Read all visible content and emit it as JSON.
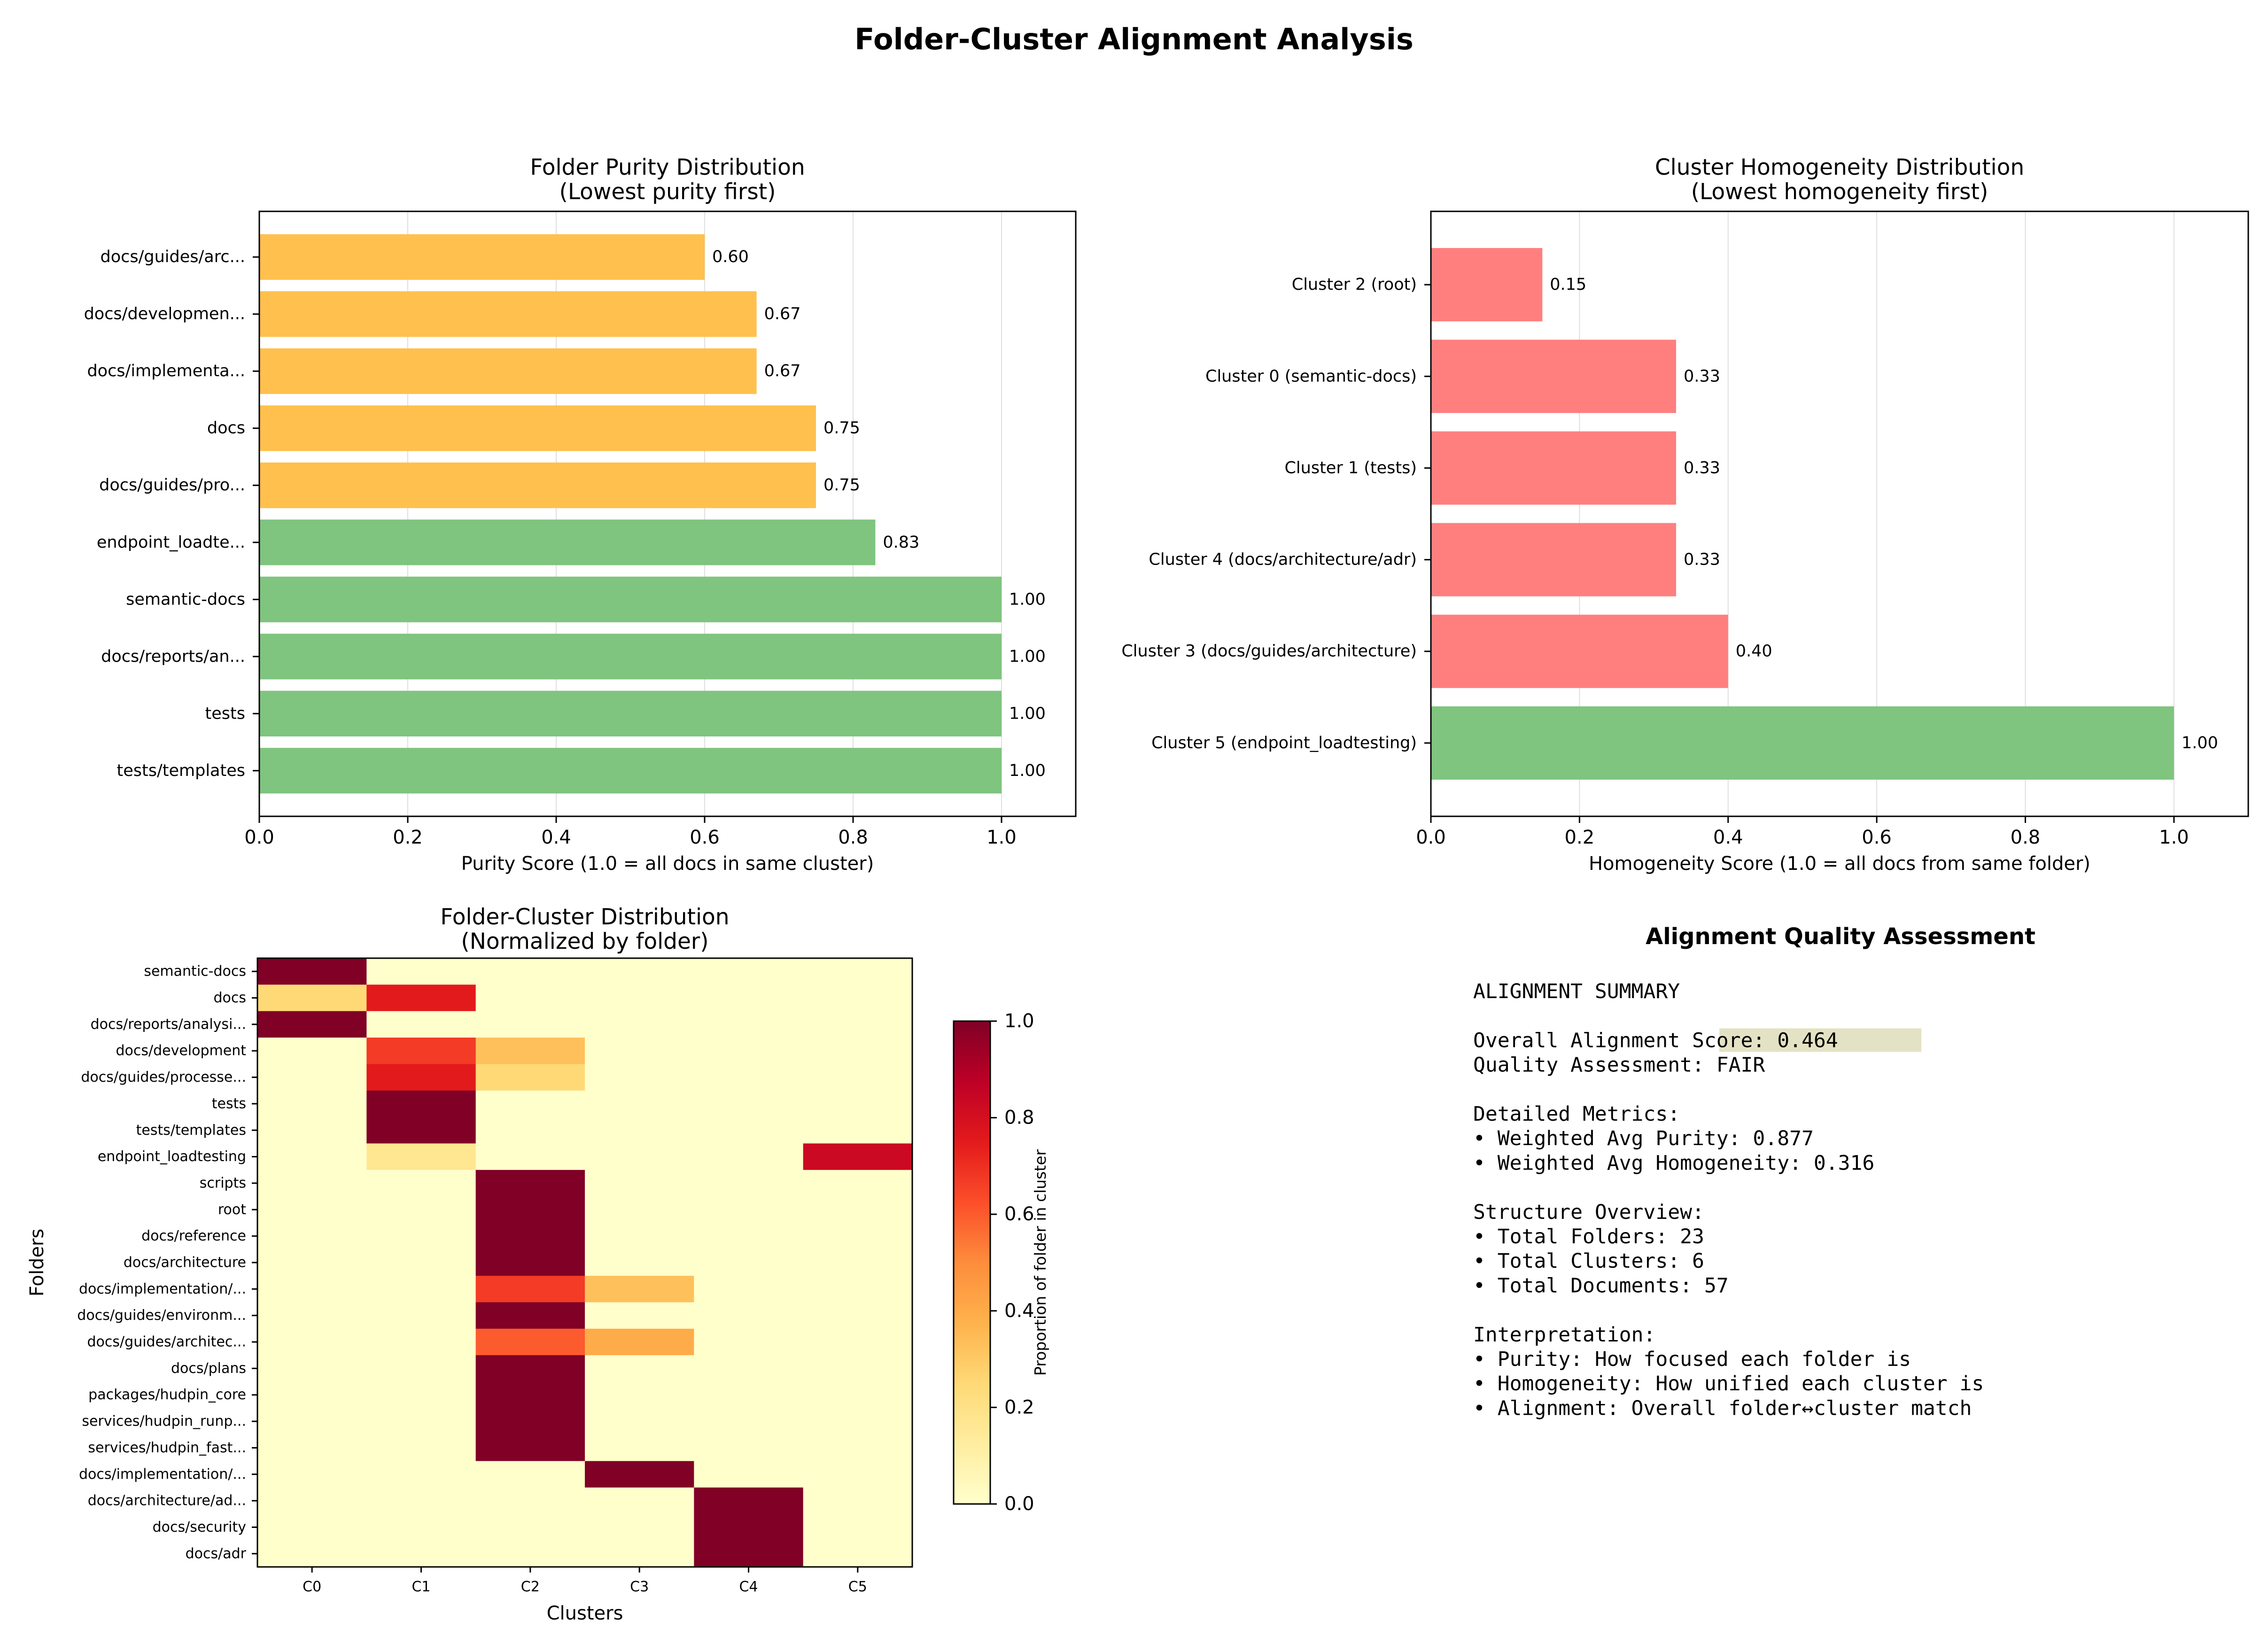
{
  "figure_title": "Folder-Cluster Alignment Analysis",
  "colors": {
    "orange": "#ffc04d",
    "green": "#7fc47f",
    "red": "#ff7f7f",
    "highlight": "#e4e2c4"
  },
  "chart_data": [
    {
      "type": "bar",
      "orientation": "horizontal",
      "title": "Folder Purity Distribution\n(Lowest purity first)",
      "xlabel": "Purity Score (1.0 = all docs in same cluster)",
      "ylabel": "",
      "xlim": [
        0,
        1.1
      ],
      "xticks": [
        "0.0",
        "0.2",
        "0.4",
        "0.6",
        "0.8",
        "1.0"
      ],
      "grid": "x",
      "categories": [
        "docs/guides/arc...",
        "docs/developmen...",
        "docs/implementa...",
        "docs",
        "docs/guides/pro...",
        "endpoint_loadte...",
        "semantic-docs",
        "docs/reports/an...",
        "tests",
        "tests/templates"
      ],
      "values": [
        0.6,
        0.67,
        0.67,
        0.75,
        0.75,
        0.83,
        1.0,
        1.0,
        1.0,
        1.0
      ],
      "value_labels": [
        "0.60",
        "0.67",
        "0.67",
        "0.75",
        "0.75",
        "0.83",
        "1.00",
        "1.00",
        "1.00",
        "1.00"
      ],
      "bar_colors": [
        "#ffc04d",
        "#ffc04d",
        "#ffc04d",
        "#ffc04d",
        "#ffc04d",
        "#7fc47f",
        "#7fc47f",
        "#7fc47f",
        "#7fc47f",
        "#7fc47f"
      ]
    },
    {
      "type": "bar",
      "orientation": "horizontal",
      "title": "Cluster Homogeneity Distribution\n(Lowest homogeneity first)",
      "xlabel": "Homogeneity Score (1.0 = all docs from same folder)",
      "ylabel": "",
      "xlim": [
        0,
        1.1
      ],
      "xticks": [
        "0.0",
        "0.2",
        "0.4",
        "0.6",
        "0.8",
        "1.0"
      ],
      "grid": "x",
      "categories": [
        "Cluster 2 (root)",
        "Cluster 0 (semantic-docs)",
        "Cluster 1 (tests)",
        "Cluster 4 (docs/architecture/adr)",
        "Cluster 3 (docs/guides/architecture)",
        "Cluster 5 (endpoint_loadtesting)"
      ],
      "values": [
        0.15,
        0.33,
        0.33,
        0.33,
        0.4,
        1.0
      ],
      "value_labels": [
        "0.15",
        "0.33",
        "0.33",
        "0.33",
        "0.40",
        "1.00"
      ],
      "bar_colors": [
        "#ff7f7f",
        "#ff7f7f",
        "#ff7f7f",
        "#ff7f7f",
        "#ff7f7f",
        "#7fc47f"
      ]
    },
    {
      "type": "heatmap",
      "title": "Folder-Cluster Distribution\n(Normalized by folder)",
      "xlabel": "Clusters",
      "ylabel": "Folders",
      "columns": [
        "C0",
        "C1",
        "C2",
        "C3",
        "C4",
        "C5"
      ],
      "rows": [
        "semantic-docs",
        "docs",
        "docs/reports/analysi...",
        "docs/development",
        "docs/guides/processe...",
        "tests",
        "tests/templates",
        "endpoint_loadtesting",
        "scripts",
        "root",
        "docs/reference",
        "docs/architecture",
        "docs/implementation/...",
        "docs/guides/environm...",
        "docs/guides/architec...",
        "docs/plans",
        "packages/hudpin_core",
        "services/hudpin_runp...",
        "services/hudpin_fast...",
        "docs/implementation/...",
        "docs/architecture/ad...",
        "docs/security",
        "docs/adr"
      ],
      "values": [
        [
          1.0,
          0.0,
          0.0,
          0.0,
          0.0,
          0.0
        ],
        [
          0.25,
          0.75,
          0.0,
          0.0,
          0.0,
          0.0
        ],
        [
          1.0,
          0.0,
          0.0,
          0.0,
          0.0,
          0.0
        ],
        [
          0.0,
          0.67,
          0.33,
          0.0,
          0.0,
          0.0
        ],
        [
          0.0,
          0.75,
          0.25,
          0.0,
          0.0,
          0.0
        ],
        [
          0.0,
          1.0,
          0.0,
          0.0,
          0.0,
          0.0
        ],
        [
          0.0,
          1.0,
          0.0,
          0.0,
          0.0,
          0.0
        ],
        [
          0.0,
          0.17,
          0.0,
          0.0,
          0.0,
          0.83
        ],
        [
          0.0,
          0.0,
          1.0,
          0.0,
          0.0,
          0.0
        ],
        [
          0.0,
          0.0,
          1.0,
          0.0,
          0.0,
          0.0
        ],
        [
          0.0,
          0.0,
          1.0,
          0.0,
          0.0,
          0.0
        ],
        [
          0.0,
          0.0,
          1.0,
          0.0,
          0.0,
          0.0
        ],
        [
          0.0,
          0.0,
          0.67,
          0.33,
          0.0,
          0.0
        ],
        [
          0.0,
          0.0,
          1.0,
          0.0,
          0.0,
          0.0
        ],
        [
          0.0,
          0.0,
          0.6,
          0.4,
          0.0,
          0.0
        ],
        [
          0.0,
          0.0,
          1.0,
          0.0,
          0.0,
          0.0
        ],
        [
          0.0,
          0.0,
          1.0,
          0.0,
          0.0,
          0.0
        ],
        [
          0.0,
          0.0,
          1.0,
          0.0,
          0.0,
          0.0
        ],
        [
          0.0,
          0.0,
          1.0,
          0.0,
          0.0,
          0.0
        ],
        [
          0.0,
          0.0,
          0.0,
          1.0,
          0.0,
          0.0
        ],
        [
          0.0,
          0.0,
          0.0,
          0.0,
          1.0,
          0.0
        ],
        [
          0.0,
          0.0,
          0.0,
          0.0,
          1.0,
          0.0
        ],
        [
          0.0,
          0.0,
          0.0,
          0.0,
          1.0,
          0.0
        ]
      ],
      "colormap": "YlOrRd",
      "colorbar_label": "Proportion of folder in cluster",
      "colorbar_range": [
        0,
        1
      ],
      "colorbar_ticks": [
        "0.0",
        "0.2",
        "0.4",
        "0.6",
        "0.8",
        "1.0"
      ]
    }
  ],
  "assessment": {
    "title": "Alignment Quality Assessment",
    "lines": [
      "ALIGNMENT SUMMARY",
      "",
      "Overall Alignment Score: 0.464",
      "Quality Assessment: FAIR",
      "",
      "Detailed Metrics:",
      "• Weighted Avg Purity: 0.877",
      "• Weighted Avg Homogeneity: 0.316",
      "",
      "Structure Overview:",
      "• Total Folders: 23",
      "• Total Clusters: 6",
      "• Total Documents: 57",
      "",
      "Interpretation:",
      "• Purity: How focused each folder is",
      "• Homogeneity: How unified each cluster is",
      "• Alignment: Overall folder↔cluster match"
    ]
  }
}
